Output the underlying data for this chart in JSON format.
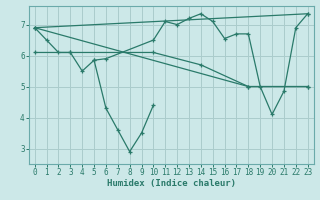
{
  "bg_color": "#cce8e8",
  "grid_color": "#aacccc",
  "line_color": "#2a7a6a",
  "xlabel": "Humidex (Indice chaleur)",
  "xlim": [
    -0.5,
    23.5
  ],
  "ylim": [
    2.5,
    7.6
  ],
  "yticks": [
    3,
    4,
    5,
    6,
    7
  ],
  "xticks": [
    0,
    1,
    2,
    3,
    4,
    5,
    6,
    7,
    8,
    9,
    10,
    11,
    12,
    13,
    14,
    15,
    16,
    17,
    18,
    19,
    20,
    21,
    22,
    23
  ],
  "series": [
    {
      "x": [
        0,
        1,
        2,
        3,
        4,
        5,
        6,
        10,
        11,
        12,
        13,
        14,
        15,
        16,
        17,
        18,
        19,
        20,
        21,
        22,
        23
      ],
      "y": [
        6.9,
        6.5,
        6.1,
        6.1,
        5.5,
        5.85,
        5.9,
        6.5,
        7.1,
        7.0,
        7.2,
        7.35,
        7.1,
        6.55,
        6.7,
        6.7,
        5.0,
        4.1,
        4.85,
        6.9,
        7.35
      ]
    },
    {
      "x": [
        0,
        23
      ],
      "y": [
        6.9,
        7.35
      ]
    },
    {
      "x": [
        0,
        3,
        10,
        14,
        18,
        23
      ],
      "y": [
        6.1,
        6.1,
        6.1,
        5.7,
        5.0,
        5.0
      ]
    },
    {
      "x": [
        0,
        18,
        23
      ],
      "y": [
        6.9,
        5.0,
        5.0
      ]
    },
    {
      "x": [
        5,
        6,
        7,
        8,
        9,
        10
      ],
      "y": [
        5.85,
        4.3,
        3.6,
        2.9,
        3.5,
        4.4
      ]
    }
  ]
}
